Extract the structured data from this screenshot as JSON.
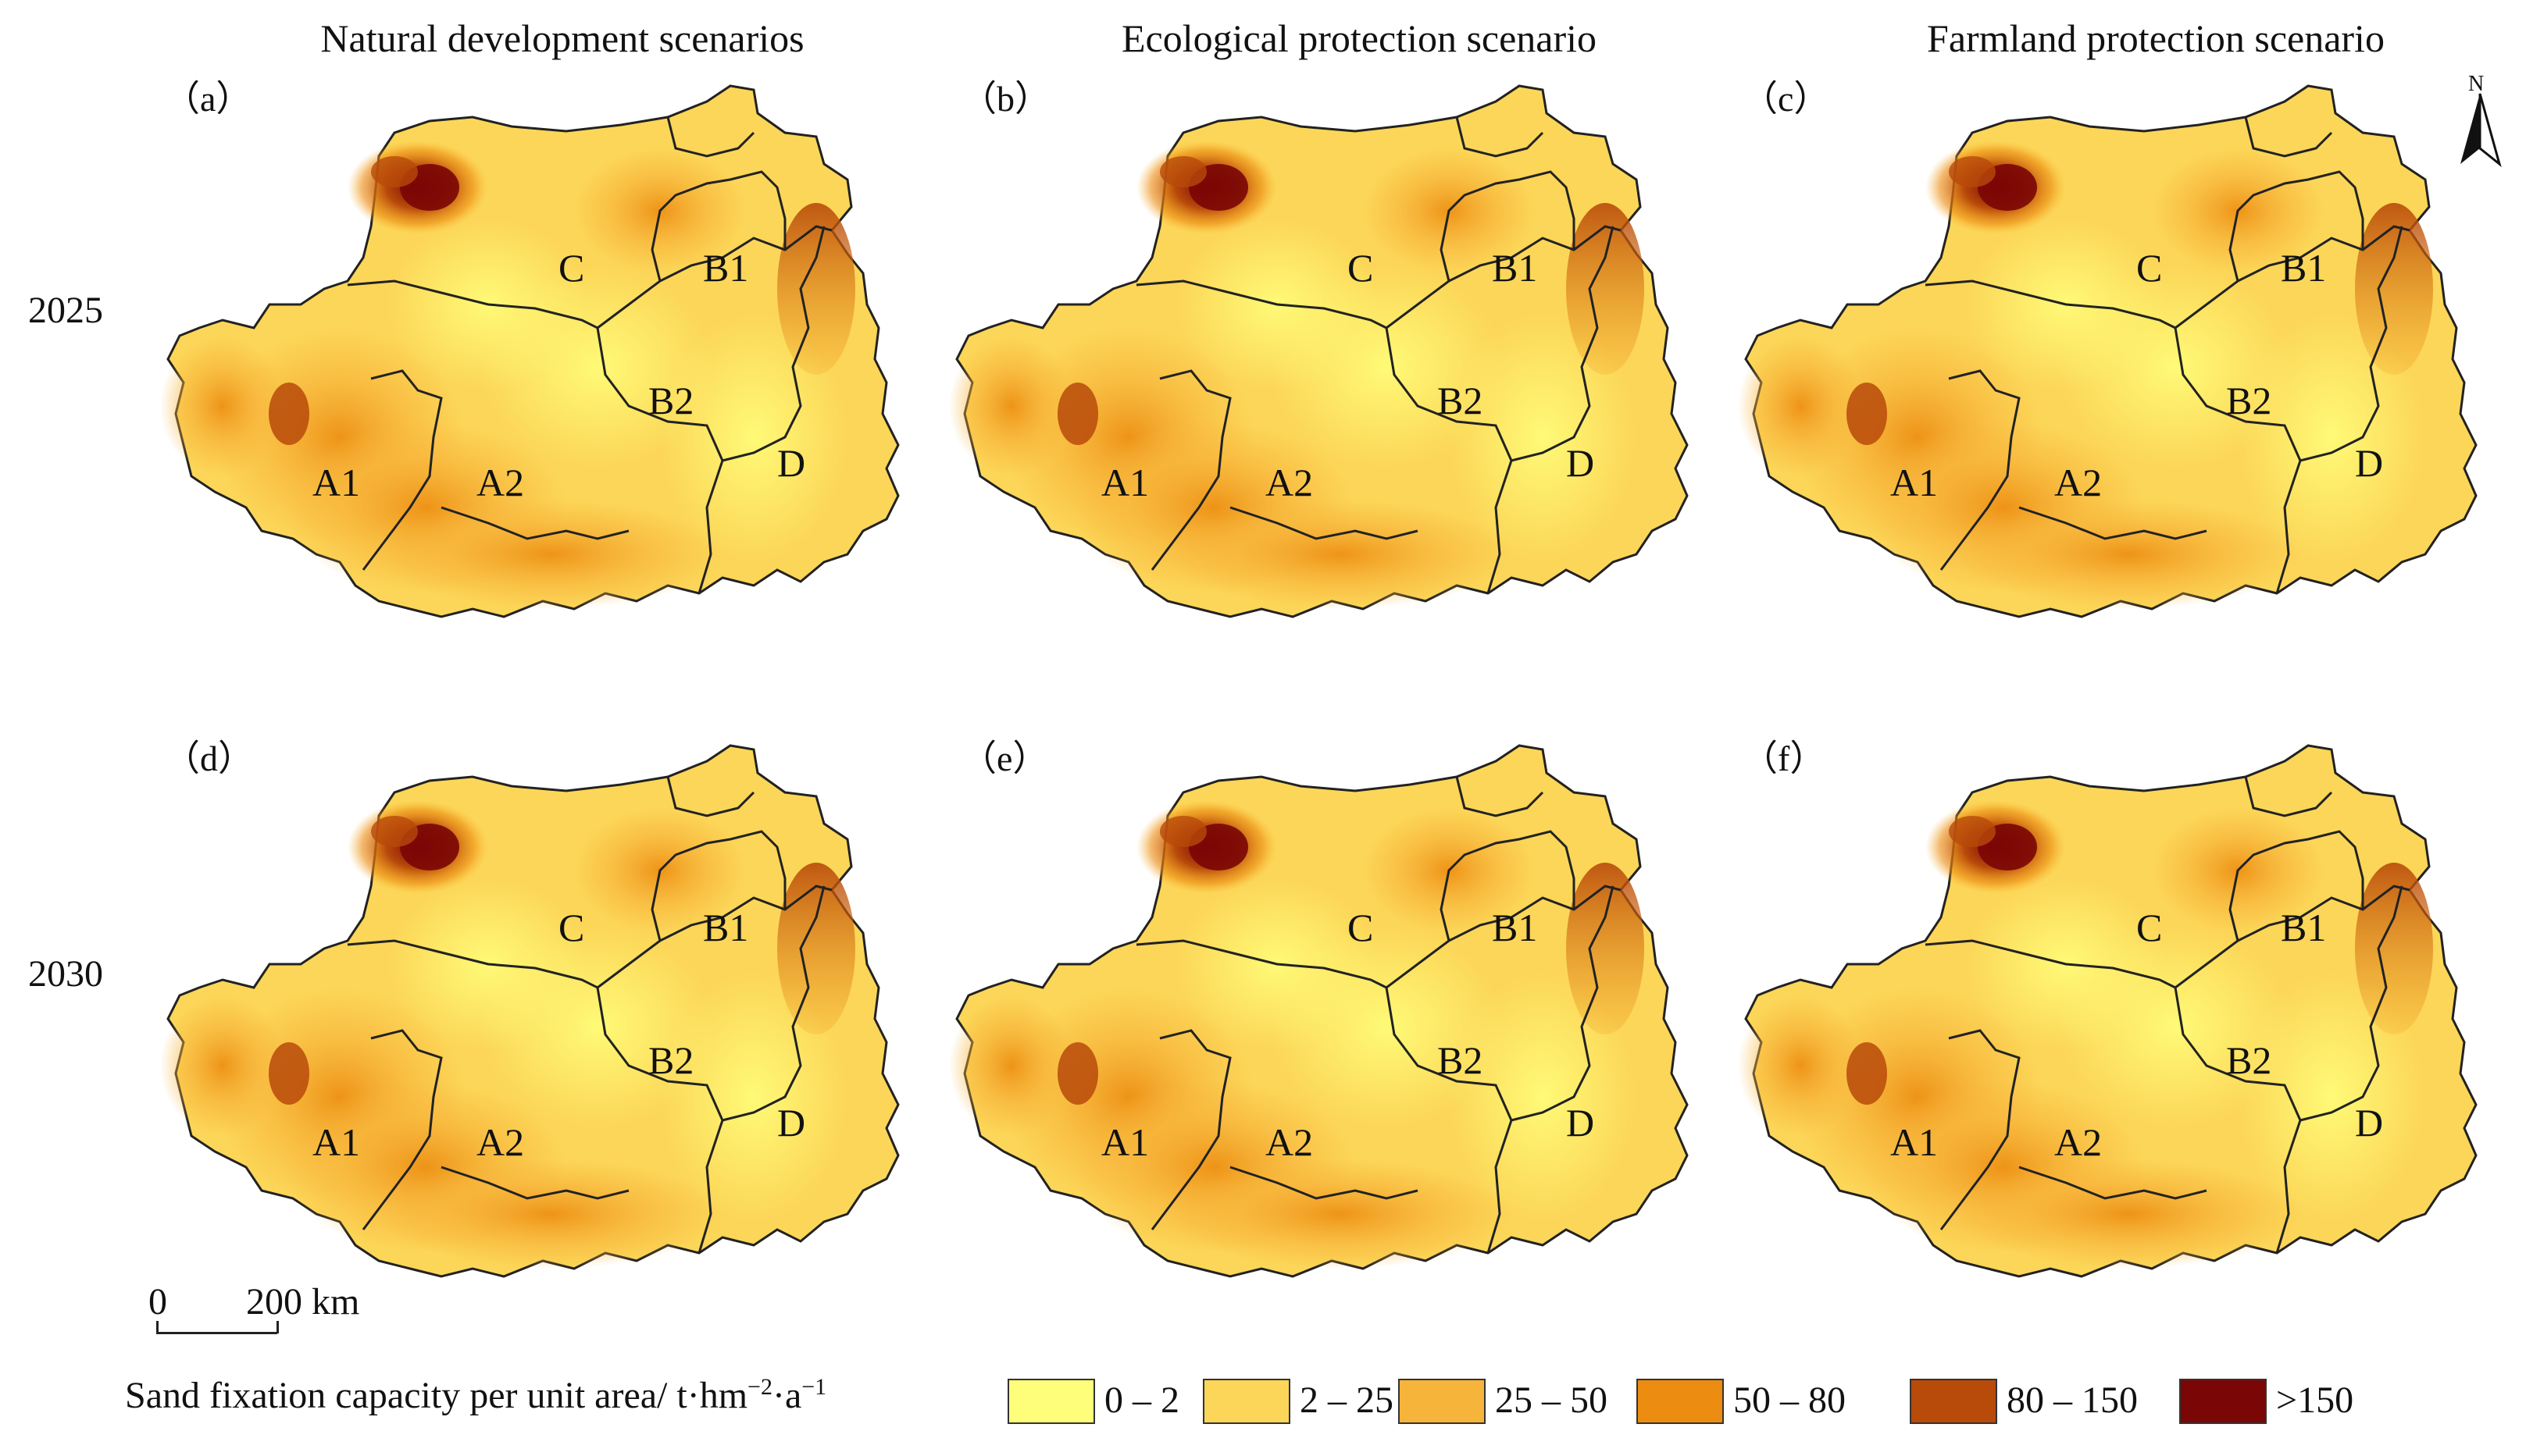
{
  "columns": [
    {
      "title": "Natural development scenarios"
    },
    {
      "title": "Ecological protection scenario"
    },
    {
      "title": "Farmland protection scenario"
    }
  ],
  "rows": [
    {
      "year": "2025"
    },
    {
      "year": "2030"
    }
  ],
  "panels": [
    {
      "letter": "（a）"
    },
    {
      "letter": "（b）"
    },
    {
      "letter": "（c）"
    },
    {
      "letter": "（d）"
    },
    {
      "letter": "（e）"
    },
    {
      "letter": "（f）"
    }
  ],
  "zones": [
    "A1",
    "A2",
    "B1",
    "B2",
    "C",
    "D"
  ],
  "north_arrow": {
    "label": "N"
  },
  "scale_bar": {
    "start": "0",
    "end": "200 km"
  },
  "legend": {
    "title": "Sand fixation capacity per unit area/ t·hm",
    "title_exp1": "−2",
    "title_mid": "·a",
    "title_exp2": "−1",
    "classes": [
      {
        "label": "0 – 2",
        "color": "#fffe7a"
      },
      {
        "label": "2 – 25",
        "color": "#fcd658"
      },
      {
        "label": "25 – 50",
        "color": "#f7b43a"
      },
      {
        "label": "50 – 80",
        "color": "#ec8c10"
      },
      {
        "label": "80 – 150",
        "color": "#b84a0a"
      },
      {
        "label": ">150",
        "color": "#7a0606"
      }
    ]
  }
}
